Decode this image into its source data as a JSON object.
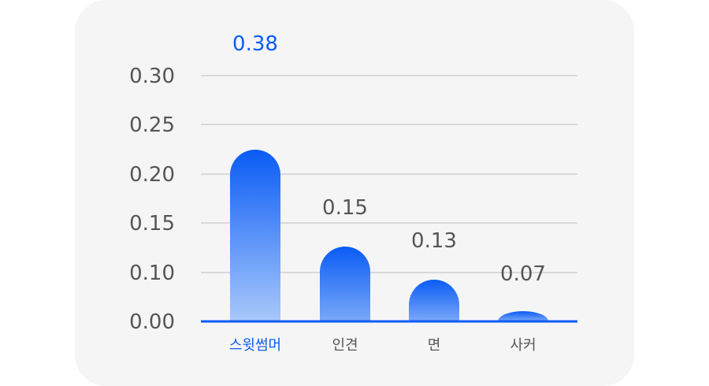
{
  "chart_data": {
    "type": "bar",
    "categories": [
      "스윗썸머",
      "인견",
      "면",
      "사커"
    ],
    "values": [
      0.38,
      0.15,
      0.13,
      0.07
    ],
    "value_labels": [
      "0.38",
      "0.15",
      "0.13",
      "0.07"
    ],
    "y_ticks": [
      "0.00",
      "0.10",
      "0.15",
      "0.20",
      "0.25",
      "0.30"
    ],
    "highlight_index": 0,
    "grid": true,
    "colors": {
      "accent": "#0a5cf5",
      "bar_top": "#0a5cf5",
      "bar_bottom_highlight": "#a9c8fb",
      "text": "#555555",
      "grid": "#bdbdbd"
    }
  }
}
